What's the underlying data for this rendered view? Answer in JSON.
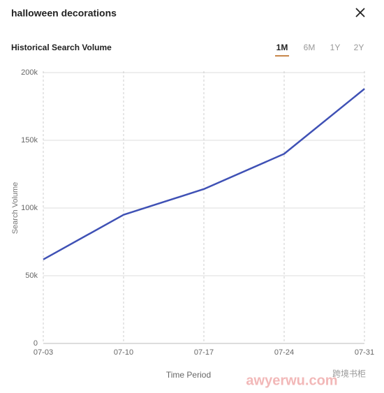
{
  "header": {
    "title": "halloween decorations"
  },
  "section_title": "Historical Search Volume",
  "tabs": [
    "1M",
    "6M",
    "1Y",
    "2Y"
  ],
  "active_tab": 0,
  "watermark": [
    "跨境书柜",
    "awyerwu.com"
  ],
  "chart_data": {
    "type": "line",
    "xlabel": "Time Period",
    "ylabel": "Search Volume",
    "categories": [
      "07-03",
      "07-10",
      "07-17",
      "07-24",
      "07-31"
    ],
    "values": [
      62000,
      95000,
      114000,
      140000,
      188000
    ],
    "color": "#3f51b5",
    "ylim": [
      0,
      200000
    ],
    "yticks": [
      0,
      {
        "value": 50000,
        "label": "50k"
      },
      {
        "value": 100000,
        "label": "100k"
      },
      {
        "value": 150000,
        "label": "150k"
      },
      {
        "value": 200000,
        "label": "200k"
      }
    ],
    "grid": true
  }
}
